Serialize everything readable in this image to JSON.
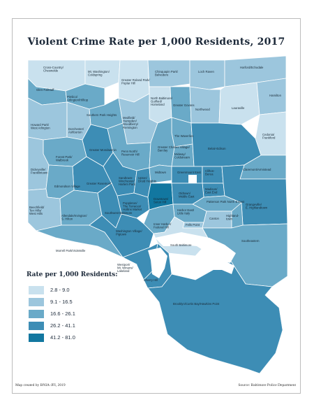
{
  "title": "Violent Crime Rate per 1,000 Residents, 2017",
  "legend": {
    "title": "Rate per 1,000 Residents:",
    "classes": [
      {
        "label": "2.8 - 9.0",
        "color": "#c9e1ee"
      },
      {
        "label": "9.1 - 16.5",
        "color": "#9cc6dd"
      },
      {
        "label": "16.6 - 26.1",
        "color": "#6aaac8"
      },
      {
        "label": "26.2 - 41.1",
        "color": "#3d8db5"
      },
      {
        "label": "41.2 - 81.0",
        "color": "#1277a0"
      }
    ]
  },
  "colors": {
    "water": "#ffffff",
    "boundary": "#ffffff"
  },
  "neighborhoods": [
    {
      "id": "cross-country",
      "name": "Cross-Country/ Cheswolde",
      "class": 0
    },
    {
      "id": "mt-washington",
      "name": "Mt. Washington/ Coldspring",
      "class": 0
    },
    {
      "id": "greater-roland-park",
      "name": "Greater Roland Park/ Poplar Hill",
      "class": 0
    },
    {
      "id": "chinquapin-park",
      "name": "Chinquapin Park/ Belvedere",
      "class": 1
    },
    {
      "id": "loch-raven",
      "name": "Loch Raven",
      "class": 1
    },
    {
      "id": "harford-echodale",
      "name": "Harford/Echodale",
      "class": 1
    },
    {
      "id": "glen-falstaff",
      "name": "Glen-Fallstaff",
      "class": 2
    },
    {
      "id": "pimlico",
      "name": "Pimlico/ Arlington/Hilltop",
      "class": 2
    },
    {
      "id": "north-baltimore",
      "name": "North Baltimore/ Guilford/ Homeland",
      "class": 0
    },
    {
      "id": "greater-govans",
      "name": "Greater Govans",
      "class": 2
    },
    {
      "id": "northwood",
      "name": "Northwood",
      "class": 1
    },
    {
      "id": "lauraville",
      "name": "Lauraville",
      "class": 0
    },
    {
      "id": "hamilton",
      "name": "Hamilton",
      "class": 1
    },
    {
      "id": "howard-park",
      "name": "Howard Park/ West Arlington",
      "class": 1
    },
    {
      "id": "southern-park-heights",
      "name": "Southern Park Heights",
      "class": 2
    },
    {
      "id": "dorchester",
      "name": "Dorchester/ Ashburton",
      "class": 1
    },
    {
      "id": "medfield",
      "name": "Medfield/ Hampden/ Woodberry/ Remington",
      "class": 1
    },
    {
      "id": "the-waverlies",
      "name": "The Waverlies",
      "class": 2
    },
    {
      "id": "cedonia",
      "name": "Cedonia/ Frankford",
      "class": 0
    },
    {
      "id": "forest-park",
      "name": "Forest Park/ Walbrook",
      "class": 2
    },
    {
      "id": "greater-mondawmin",
      "name": "Greater Mondawmin",
      "class": 3
    },
    {
      "id": "penn-north",
      "name": "Penn North/ Reservoir Hill",
      "class": 2
    },
    {
      "id": "greater-charles-village",
      "name": "Greater Charles Village/ Barclay",
      "class": 2
    },
    {
      "id": "midway",
      "name": "Midway/ Coldstream",
      "class": 2
    },
    {
      "id": "belair-edison",
      "name": "Belair-Edison",
      "class": 3
    },
    {
      "id": "dickeyville",
      "name": "Dickeyville/ Franklintown",
      "class": 1
    },
    {
      "id": "claremont",
      "name": "Claremont/Armistead",
      "class": 2
    },
    {
      "id": "greater-rosemont",
      "name": "Greater Rosemont",
      "class": 3
    },
    {
      "id": "sandtown",
      "name": "Sandtown- Winchester/ Harlem Park",
      "class": 3
    },
    {
      "id": "upton",
      "name": "Upton/ Druid Heights",
      "class": 3
    },
    {
      "id": "midtown",
      "name": "Midtown",
      "class": 2
    },
    {
      "id": "greenmount-east",
      "name": "Greenmount East",
      "class": 3
    },
    {
      "id": "clifton-berea",
      "name": "Clifton- Berea",
      "class": 3
    },
    {
      "id": "edmondson-village",
      "name": "Edmondson Village",
      "class": 2
    },
    {
      "id": "madison-east-end",
      "name": "Madison/ East End",
      "class": 3
    },
    {
      "id": "grangeville",
      "name": "Grangeville/ E. Highlandtown",
      "class": 3
    },
    {
      "id": "beechfield",
      "name": "Beechfield/ Ten Hills/ West Hills",
      "class": 1
    },
    {
      "id": "allendale",
      "name": "Allendale/Irvington/ S. Hilton",
      "class": 2
    },
    {
      "id": "poppleton",
      "name": "Poppleton/ The Terraces/ Hollins Market",
      "class": 3
    },
    {
      "id": "downtown",
      "name": "Downtown/ Seton Hill",
      "class": 4
    },
    {
      "id": "oldtown",
      "name": "Oldtown/ Middle East",
      "class": 3
    },
    {
      "id": "patterson-park",
      "name": "Patterson Park North & East",
      "class": 2
    },
    {
      "id": "southwest-baltimore",
      "name": "Southwest Baltimore",
      "class": 3
    },
    {
      "id": "harbor-east",
      "name": "Harbor East/ Little Italy",
      "class": 2
    },
    {
      "id": "fells-point",
      "name": "Fells Point",
      "class": 1
    },
    {
      "id": "canton",
      "name": "Canton",
      "class": 1
    },
    {
      "id": "highlandtown",
      "name": "Highland- town",
      "class": 2
    },
    {
      "id": "inner-harbor",
      "name": "Inner Harbor/ Federal Hill",
      "class": 2
    },
    {
      "id": "morrell-park",
      "name": "Morrell Park/Violetville",
      "class": 2
    },
    {
      "id": "washington-village",
      "name": "Washington Village/ Pigtown",
      "class": 3
    },
    {
      "id": "south-baltimore",
      "name": "South Baltimore",
      "class": 0
    },
    {
      "id": "southeastern",
      "name": "Southeastern",
      "class": 2
    },
    {
      "id": "westport",
      "name": "Westport/ Mt. Winans/ Lakeland",
      "class": 3
    },
    {
      "id": "cherry-hill",
      "name": "Cherry Hill",
      "class": 3
    },
    {
      "id": "brooklyn",
      "name": "Brooklyn/Curtis Bay/Hawkins Point",
      "class": 3
    }
  ],
  "credits": {
    "left": "Map created by BNIA-JFI, 2019",
    "right": "Source: Baltimore Police Department"
  }
}
